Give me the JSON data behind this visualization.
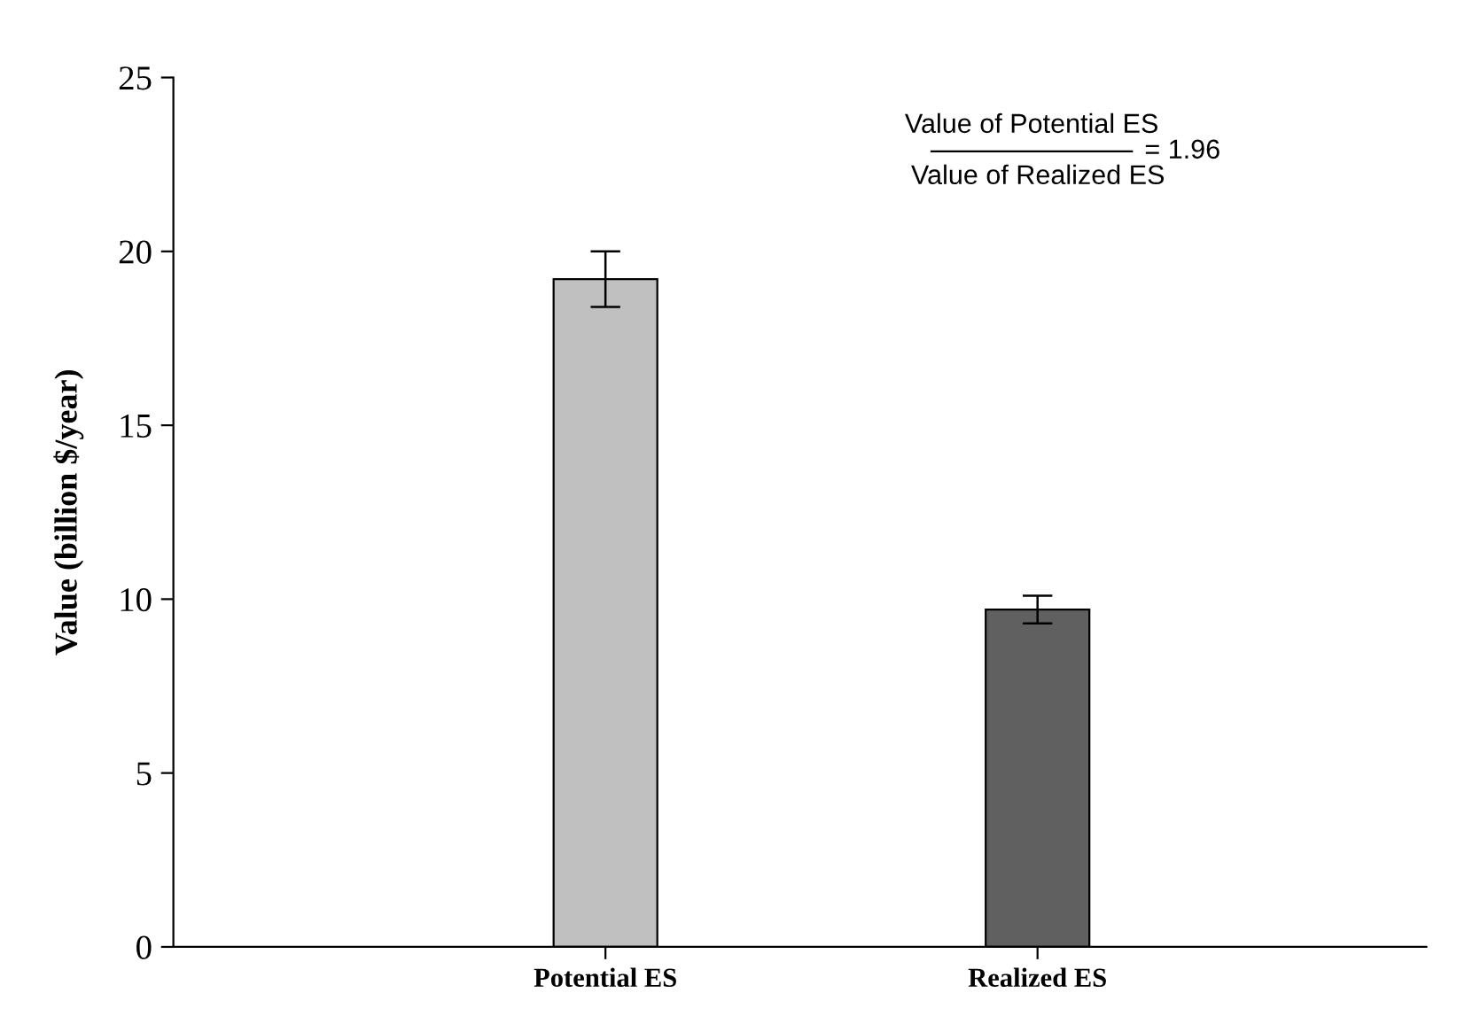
{
  "chart_data": {
    "type": "bar",
    "ylabel": "Value (billion $/year)",
    "categories": [
      "Potential ES",
      "Realized ES"
    ],
    "values": [
      19.2,
      9.7
    ],
    "errors": [
      0.8,
      0.4
    ],
    "colors": [
      "#c0c0c0",
      "#606060"
    ],
    "ylim": [
      0,
      25
    ],
    "yticks": [
      0,
      5,
      10,
      15,
      20,
      25
    ],
    "grid": false,
    "annotations": [
      "Value of Potential ES",
      "Value of Realized ES",
      "= 1.96"
    ]
  }
}
